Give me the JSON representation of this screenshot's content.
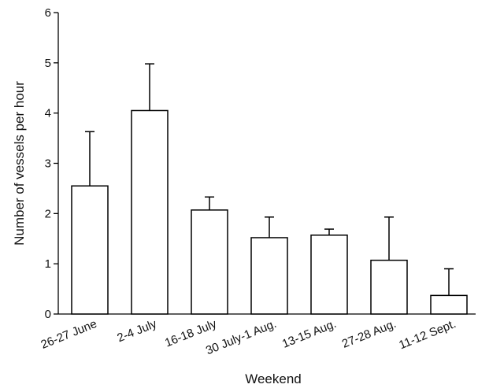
{
  "chart_data": {
    "type": "bar",
    "categories": [
      "26-27 June",
      "2-4 July",
      "16-18 July",
      "30 July-1 Aug.",
      "13-15 Aug.",
      "27-28 Aug.",
      "11-12 Sept."
    ],
    "values": [
      2.55,
      4.05,
      2.07,
      1.52,
      1.57,
      1.07,
      0.37
    ],
    "error_upper": [
      3.63,
      4.98,
      2.33,
      1.93,
      1.69,
      1.93,
      0.9
    ],
    "title": "",
    "xlabel": "Weekend",
    "ylabel": "Number of vessels per hour",
    "ylim": [
      0,
      6
    ],
    "yticks": [
      "0",
      "1",
      "2",
      "3",
      "4",
      "5",
      "6"
    ],
    "grid": false,
    "legend": "none",
    "colors": {
      "bar_fill": "#ffffff",
      "bar_stroke": "#000000",
      "axis": "#000000"
    }
  }
}
